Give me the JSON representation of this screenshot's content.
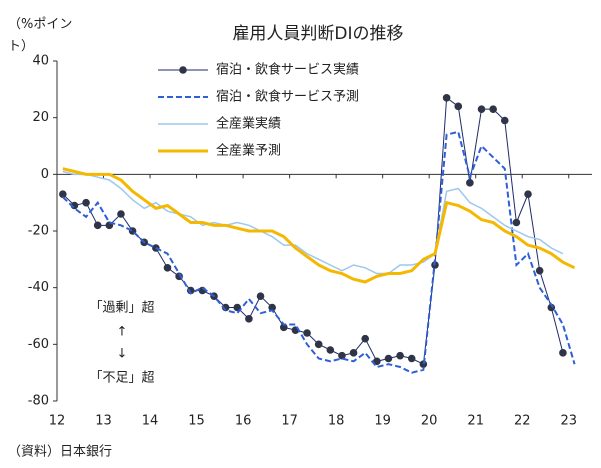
{
  "chart_data": {
    "type": "line",
    "title": "雇用人員判断DIの推移",
    "y_label": "（%ポイント）",
    "source": "（資料）日本銀行",
    "annotations": [
      "「過剰」超",
      "↑",
      "↓",
      "「不足」超"
    ],
    "x": [
      12.125,
      12.375,
      12.625,
      12.875,
      13.125,
      13.375,
      13.625,
      13.875,
      14.125,
      14.375,
      14.625,
      14.875,
      15.125,
      15.375,
      15.625,
      15.875,
      16.125,
      16.375,
      16.625,
      16.875,
      17.125,
      17.375,
      17.625,
      17.875,
      18.125,
      18.375,
      18.625,
      18.875,
      19.125,
      19.375,
      19.625,
      19.875,
      20.125,
      20.375,
      20.625,
      20.875,
      21.125,
      21.375,
      21.625,
      21.875,
      22.125,
      22.375,
      22.625,
      22.875,
      23.125
    ],
    "series": [
      {
        "name": "宿泊・飲食サービス実績",
        "color": "#1f2a6b",
        "style": "marker",
        "values": [
          -7,
          -11,
          -10,
          -18,
          -18,
          -14,
          -20,
          -24,
          -26,
          -33,
          -36,
          -41,
          -41,
          -43,
          -47,
          -47,
          -51,
          -43,
          -47,
          -54,
          -55,
          -56,
          -60,
          -62,
          -64,
          -63,
          -58,
          -66,
          -65,
          -64,
          -65,
          -67,
          -32,
          27,
          24,
          -3,
          23,
          23,
          19,
          -17,
          -7,
          -34,
          -47,
          -63,
          null
        ]
      },
      {
        "name": "宿泊・飲食サービス予測",
        "color": "#2f5fd6",
        "style": "dashed",
        "values": [
          -8,
          -12,
          -15,
          -10,
          -17,
          -18,
          -20,
          -24,
          -26,
          -28,
          -35,
          -42,
          -40,
          -43,
          -48,
          -49,
          -44,
          -49,
          -48,
          -53,
          -53,
          -60,
          -65,
          -66,
          -65,
          -66,
          -63,
          -68,
          -67,
          -68,
          -70,
          -69,
          -30,
          14,
          15,
          -1,
          10,
          6,
          2,
          -32,
          -28,
          -40,
          -46,
          -53,
          -67
        ]
      },
      {
        "name": "全産業実績",
        "color": "#9cc8ee",
        "style": "solid",
        "values": [
          1,
          0,
          0,
          -1,
          -2,
          -5,
          -9,
          -12,
          -10,
          -13,
          -14,
          -15,
          -18,
          -17,
          -18,
          -17,
          -18,
          -20,
          -22,
          -25,
          -25,
          -28,
          -30,
          -32,
          -34,
          -32,
          -33,
          -35,
          -35,
          -32,
          -32,
          -31,
          -28,
          -6,
          -5,
          -10,
          -12,
          -15,
          -18,
          -20,
          -22,
          -23,
          -26,
          -28,
          null
        ]
      },
      {
        "name": "全産業予測",
        "color": "#f5b800",
        "style": "thick",
        "values": [
          2,
          1,
          0,
          0,
          0,
          -2,
          -6,
          -9,
          -12,
          -11,
          -14,
          -17,
          -17,
          -18,
          -18,
          -19,
          -20,
          -20,
          -20,
          -22,
          -26,
          -29,
          -32,
          -34,
          -35,
          -37,
          -38,
          -36,
          -35,
          -35,
          -34,
          -30,
          -28,
          -10,
          -11,
          -13,
          -16,
          -17,
          -20,
          -22,
          -25,
          -26,
          -28,
          -31,
          -33
        ]
      }
    ],
    "xlim": [
      12,
      23.5
    ],
    "xticks": [
      12,
      13,
      14,
      15,
      16,
      17,
      18,
      19,
      20,
      21,
      22,
      23
    ],
    "ylim": [
      -80,
      40
    ],
    "yticks": [
      -80,
      -60,
      -40,
      -20,
      0,
      20,
      40
    ],
    "grid": false,
    "legend": "top"
  }
}
